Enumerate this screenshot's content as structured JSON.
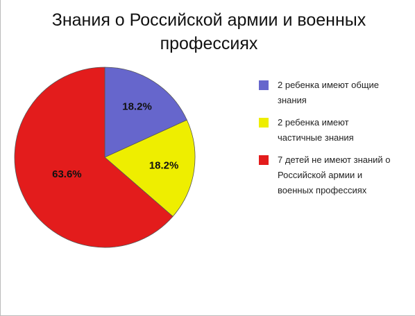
{
  "chart_data": {
    "type": "pie",
    "title": "Знания о Российской армии и военных профессиях",
    "categories": [
      "2 ребенка имеют общие знания",
      "2 ребенка имеют частичные знания",
      "7 детей не имеют знаний о Российской армии и военных профессиях"
    ],
    "values": [
      18.2,
      18.2,
      63.6
    ],
    "value_labels": [
      "18.2%",
      "18.2%",
      "63.6%"
    ],
    "colors": [
      "#6666cc",
      "#eeee00",
      "#e31c1c"
    ],
    "legend": "right"
  }
}
